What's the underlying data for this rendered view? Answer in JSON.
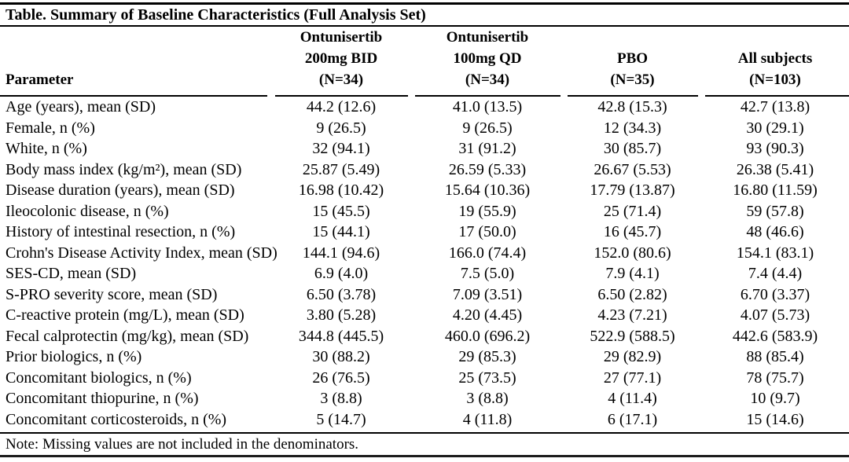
{
  "page": {
    "title": "Table. Summary of Baseline Characteristics (Full Analysis Set)",
    "note": "Note: Missing values are not included in the denominators.",
    "colors": {
      "background": "#ffffff",
      "text": "#000000",
      "rules": "#000000"
    }
  },
  "table": {
    "columns": [
      {
        "id": "parameter",
        "lines": [
          "Parameter"
        ]
      },
      {
        "id": "ontunisertib-200mg-bid",
        "lines": [
          "Ontunisertib",
          "200mg BID",
          "(N=34)"
        ]
      },
      {
        "id": "ontunisertib-100mg-qd",
        "lines": [
          "Ontunisertib",
          "100mg QD",
          "(N=34)"
        ]
      },
      {
        "id": "pbo",
        "lines": [
          "PBO",
          "(N=35)"
        ]
      },
      {
        "id": "all-subjects",
        "lines": [
          "All subjects",
          "(N=103)"
        ]
      }
    ],
    "rows": [
      {
        "parameter": "Age (years), mean (SD)",
        "c1": "44.2 (12.6)",
        "c2": "41.0 (13.5)",
        "c3": "42.8 (15.3)",
        "c4": "42.7 (13.8)"
      },
      {
        "parameter": "Female, n (%)",
        "c1": "9 (26.5)",
        "c2": "9 (26.5)",
        "c3": "12 (34.3)",
        "c4": "30 (29.1)"
      },
      {
        "parameter": "White, n (%)",
        "c1": "32 (94.1)",
        "c2": "31 (91.2)",
        "c3": "30 (85.7)",
        "c4": "93 (90.3)"
      },
      {
        "parameter": "Body mass index (kg/m²), mean (SD)",
        "c1": "25.87 (5.49)",
        "c2": "26.59 (5.33)",
        "c3": "26.67 (5.53)",
        "c4": "26.38 (5.41)"
      },
      {
        "parameter": "Disease duration (years), mean (SD)",
        "c1": "16.98 (10.42)",
        "c2": "15.64 (10.36)",
        "c3": "17.79 (13.87)",
        "c4": "16.80 (11.59)"
      },
      {
        "parameter": "Ileocolonic disease, n (%)",
        "c1": "15 (45.5)",
        "c2": "19 (55.9)",
        "c3": "25 (71.4)",
        "c4": "59 (57.8)"
      },
      {
        "parameter": "History of intestinal resection, n (%)",
        "c1": "15 (44.1)",
        "c2": "17 (50.0)",
        "c3": "16 (45.7)",
        "c4": "48 (46.6)"
      },
      {
        "parameter": "Crohn's Disease Activity Index, mean (SD)",
        "c1": "144.1 (94.6)",
        "c2": "166.0 (74.4)",
        "c3": "152.0 (80.6)",
        "c4": "154.1 (83.1)"
      },
      {
        "parameter": "SES-CD, mean (SD)",
        "c1": "6.9 (4.0)",
        "c2": "7.5 (5.0)",
        "c3": "7.9 (4.1)",
        "c4": "7.4 (4.4)"
      },
      {
        "parameter": "S-PRO severity score, mean (SD)",
        "c1": "6.50 (3.78)",
        "c2": "7.09 (3.51)",
        "c3": "6.50 (2.82)",
        "c4": "6.70 (3.37)"
      },
      {
        "parameter": "C-reactive protein (mg/L), mean (SD)",
        "c1": "3.80 (5.28)",
        "c2": "4.20 (4.45)",
        "c3": "4.23 (7.21)",
        "c4": "4.07 (5.73)"
      },
      {
        "parameter": "Fecal calprotectin (mg/kg), mean (SD)",
        "c1": "344.8 (445.5)",
        "c2": "460.0 (696.2)",
        "c3": "522.9 (588.5)",
        "c4": "442.6 (583.9)"
      },
      {
        "parameter": "Prior biologics, n (%)",
        "c1": "30 (88.2)",
        "c2": "29 (85.3)",
        "c3": "29 (82.9)",
        "c4": "88 (85.4)"
      },
      {
        "parameter": "Concomitant biologics, n (%)",
        "c1": "26 (76.5)",
        "c2": "25 (73.5)",
        "c3": "27 (77.1)",
        "c4": "78 (75.7)"
      },
      {
        "parameter": "Concomitant thiopurine, n (%)",
        "c1": "3 (8.8)",
        "c2": "3 (8.8)",
        "c3": "4 (11.4)",
        "c4": "10 (9.7)"
      },
      {
        "parameter": "Concomitant corticosteroids, n (%)",
        "c1": "5 (14.7)",
        "c2": "4 (11.8)",
        "c3": "6 (17.1)",
        "c4": "15 (14.6)"
      }
    ]
  }
}
